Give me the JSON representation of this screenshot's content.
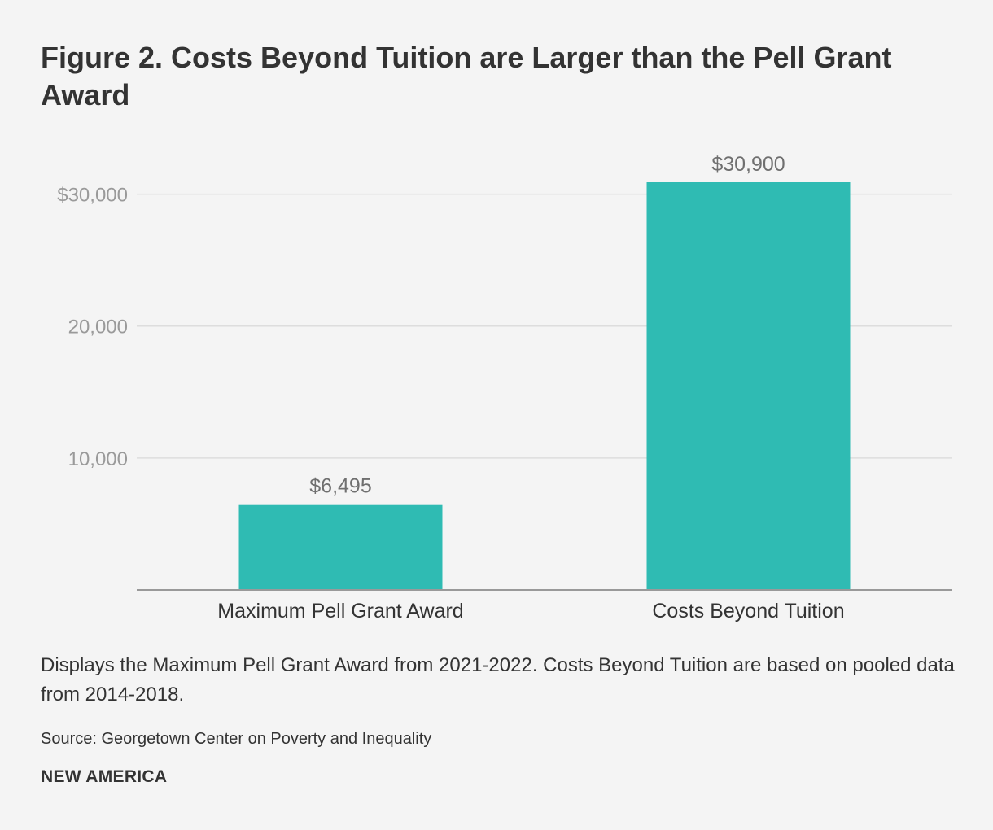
{
  "colors": {
    "bar": "#2fbbb3",
    "grid": "#dddddd",
    "axis": "#999999"
  },
  "chart_data": {
    "type": "bar",
    "title": "Figure 2. Costs Beyond Tuition are Larger than the Pell Grant Award",
    "categories": [
      "Maximum Pell Grant Award",
      "Costs Beyond Tuition"
    ],
    "values": [
      6495,
      30900
    ],
    "data_labels": [
      "$6,495",
      "$30,900"
    ],
    "ylim": [
      0,
      30900
    ],
    "yticks": [
      10000,
      20000,
      30000
    ],
    "ytick_labels": [
      "10,000",
      "20,000",
      "$30,000"
    ],
    "xlabel": "",
    "ylabel": "",
    "grid": true,
    "legend": "none"
  },
  "note": "Displays the Maximum Pell Grant Award from 2021-2022. Costs Beyond Tuition are based on pooled data from 2014-2018.",
  "source": "Source: Georgetown Center on Poverty and Inequality",
  "brand": "NEW AMERICA"
}
